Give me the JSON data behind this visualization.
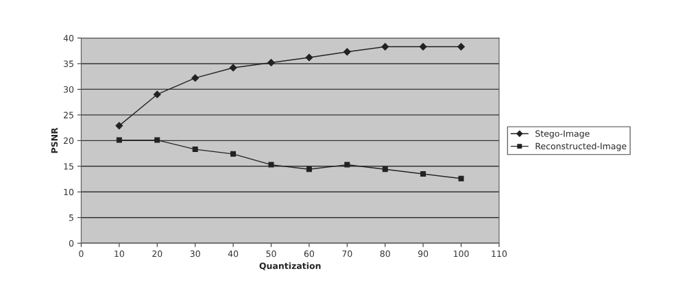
{
  "chart_data": {
    "type": "line",
    "xlabel": "Quantization",
    "ylabel": "PSNR",
    "x": [
      10,
      20,
      30,
      40,
      50,
      60,
      70,
      80,
      90,
      100
    ],
    "series": [
      {
        "name": "Stego-Image",
        "color": "#222222",
        "marker": "diamond",
        "values": [
          22.9,
          29,
          32.2,
          34.2,
          35.2,
          36.2,
          37.3,
          38.3,
          38.3,
          38.3
        ]
      },
      {
        "name": "Reconstructed-Image",
        "color": "#222222",
        "marker": "square",
        "values": [
          20.1,
          20.1,
          18.3,
          17.4,
          15.3,
          14.4,
          15.3,
          14.4,
          13.5,
          12.6
        ]
      }
    ],
    "xlim": [
      0,
      110
    ],
    "xticks": [
      0,
      10,
      20,
      30,
      40,
      50,
      60,
      70,
      80,
      90,
      100,
      110
    ],
    "ylim": [
      0,
      40
    ],
    "yticks": [
      0,
      5,
      10,
      15,
      20,
      25,
      30,
      35,
      40
    ],
    "grid": "y",
    "legend": "right",
    "line_style": "solid"
  }
}
